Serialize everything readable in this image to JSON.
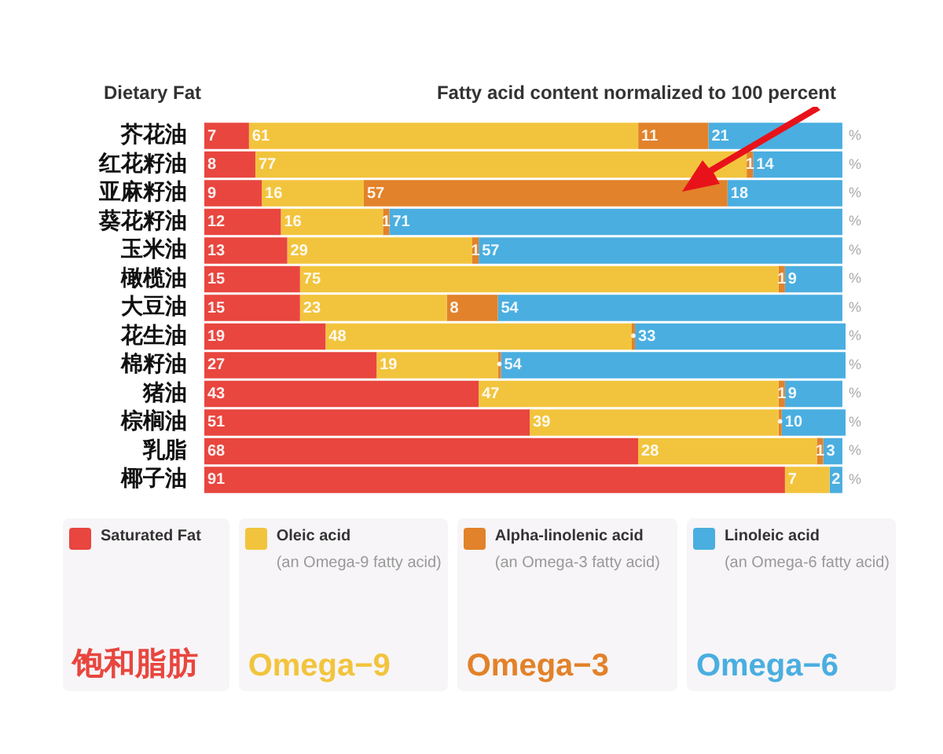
{
  "chart_data": {
    "type": "bar",
    "orientation": "horizontal",
    "stacked": true,
    "ylabel": "Dietary Fat",
    "xlabel": "Fatty acid content normalized to 100 percent",
    "categories": [
      "芥花油",
      "红花籽油",
      "亚麻籽油",
      "葵花籽油",
      "玉米油",
      "橄榄油",
      "大豆油",
      "花生油",
      "棉籽油",
      "猪油",
      "棕榈油",
      "乳脂",
      "椰子油"
    ],
    "series": [
      {
        "name": "Saturated Fat",
        "color": "#e8463f",
        "values": [
          7,
          8,
          9,
          12,
          13,
          15,
          15,
          19,
          27,
          43,
          51,
          68,
          91
        ]
      },
      {
        "name": "Oleic acid",
        "color": "#f2c43d",
        "values": [
          61,
          77,
          16,
          16,
          29,
          75,
          23,
          48,
          19,
          47,
          39,
          28,
          7
        ]
      },
      {
        "name": "Alpha-linolenic acid",
        "color": "#e2822a",
        "values": [
          11,
          1,
          57,
          1,
          1,
          1,
          8,
          0.5,
          0.5,
          1,
          0.5,
          1,
          0
        ],
        "value_labels": [
          "11",
          "1",
          "57",
          "1",
          "1",
          "1",
          "8",
          "•",
          "•",
          "1",
          "•",
          "1",
          null
        ]
      },
      {
        "name": "Linoleic acid",
        "color": "#4aaee0",
        "values": [
          21,
          14,
          18,
          71,
          57,
          9,
          54,
          33,
          54,
          9,
          10,
          3,
          2
        ]
      }
    ],
    "xlim": [
      0,
      100.5
    ],
    "tick_labels": "y",
    "data_labels": true,
    "legend": "bottom",
    "grid": false,
    "annotations": [
      "%",
      "饱和脂肪",
      "(an Omega-9 fatty acid)",
      "Omega−9",
      "(an Omega-3 fatty acid)",
      "Omega−3",
      "(an Omega-6 fatty acid)",
      "Omega−6"
    ]
  }
}
